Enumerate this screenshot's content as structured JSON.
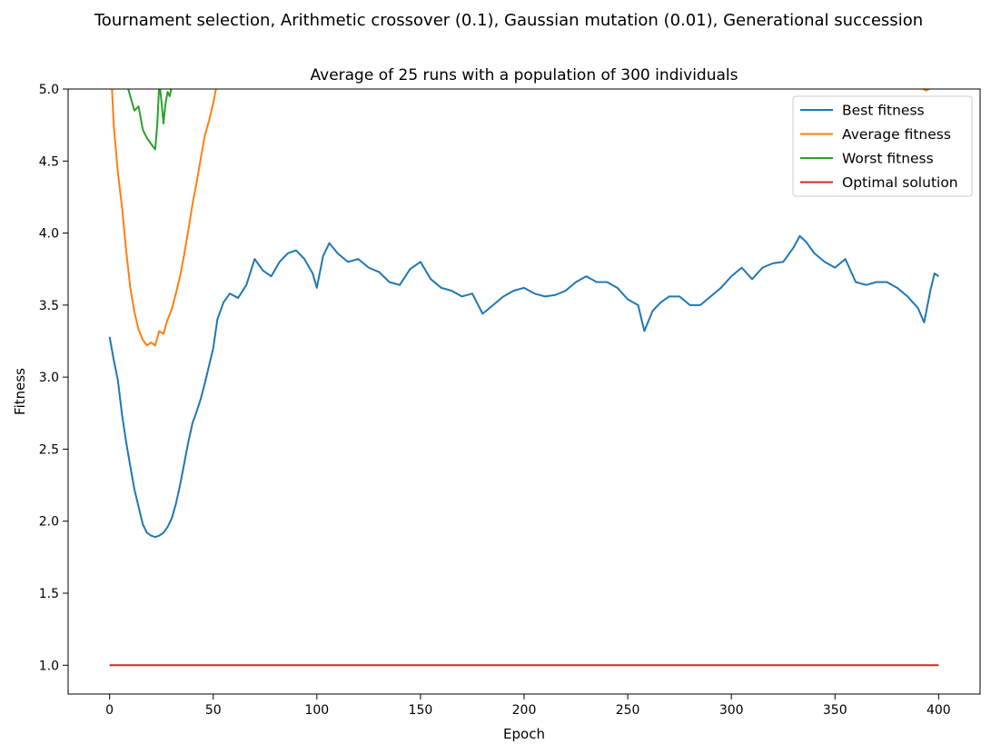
{
  "suptitle": "Tournament selection, Arithmetic crossover (0.1), Gaussian mutation (0.01), Generational succession",
  "chart_data": {
    "type": "line",
    "title": "Average of 25 runs with a population of 300 individuals",
    "xlabel": "Epoch",
    "ylabel": "Fitness",
    "xlim": [
      -20,
      420
    ],
    "ylim": [
      0.8,
      5.0
    ],
    "xticks": [
      0,
      50,
      100,
      150,
      200,
      250,
      300,
      350,
      400
    ],
    "yticks": [
      1.0,
      1.5,
      2.0,
      2.5,
      3.0,
      3.5,
      4.0,
      4.5,
      5.0
    ],
    "grid": false,
    "legend_position": "top-right",
    "series": [
      {
        "name": "Best fitness",
        "color": "#1f77b4",
        "points": [
          [
            0,
            3.28
          ],
          [
            2,
            3.12
          ],
          [
            4,
            2.98
          ],
          [
            6,
            2.74
          ],
          [
            8,
            2.55
          ],
          [
            10,
            2.38
          ],
          [
            12,
            2.22
          ],
          [
            14,
            2.1
          ],
          [
            16,
            1.98
          ],
          [
            18,
            1.92
          ],
          [
            20,
            1.9
          ],
          [
            22,
            1.89
          ],
          [
            24,
            1.9
          ],
          [
            26,
            1.92
          ],
          [
            28,
            1.96
          ],
          [
            30,
            2.02
          ],
          [
            32,
            2.12
          ],
          [
            34,
            2.25
          ],
          [
            36,
            2.4
          ],
          [
            38,
            2.55
          ],
          [
            40,
            2.68
          ],
          [
            42,
            2.76
          ],
          [
            44,
            2.85
          ],
          [
            46,
            2.96
          ],
          [
            48,
            3.08
          ],
          [
            50,
            3.2
          ],
          [
            52,
            3.4
          ],
          [
            55,
            3.52
          ],
          [
            58,
            3.58
          ],
          [
            62,
            3.55
          ],
          [
            66,
            3.64
          ],
          [
            70,
            3.82
          ],
          [
            74,
            3.74
          ],
          [
            78,
            3.7
          ],
          [
            82,
            3.8
          ],
          [
            86,
            3.86
          ],
          [
            90,
            3.88
          ],
          [
            94,
            3.82
          ],
          [
            98,
            3.72
          ],
          [
            100,
            3.62
          ],
          [
            103,
            3.84
          ],
          [
            106,
            3.93
          ],
          [
            110,
            3.86
          ],
          [
            115,
            3.8
          ],
          [
            120,
            3.82
          ],
          [
            125,
            3.76
          ],
          [
            130,
            3.73
          ],
          [
            135,
            3.66
          ],
          [
            140,
            3.64
          ],
          [
            145,
            3.75
          ],
          [
            150,
            3.8
          ],
          [
            155,
            3.68
          ],
          [
            160,
            3.62
          ],
          [
            165,
            3.6
          ],
          [
            170,
            3.56
          ],
          [
            175,
            3.58
          ],
          [
            180,
            3.44
          ],
          [
            185,
            3.5
          ],
          [
            190,
            3.56
          ],
          [
            195,
            3.6
          ],
          [
            200,
            3.62
          ],
          [
            205,
            3.58
          ],
          [
            210,
            3.56
          ],
          [
            215,
            3.57
          ],
          [
            220,
            3.6
          ],
          [
            225,
            3.66
          ],
          [
            230,
            3.7
          ],
          [
            235,
            3.66
          ],
          [
            240,
            3.66
          ],
          [
            245,
            3.62
          ],
          [
            250,
            3.54
          ],
          [
            255,
            3.5
          ],
          [
            258,
            3.32
          ],
          [
            262,
            3.46
          ],
          [
            266,
            3.52
          ],
          [
            270,
            3.56
          ],
          [
            275,
            3.56
          ],
          [
            280,
            3.5
          ],
          [
            285,
            3.5
          ],
          [
            290,
            3.56
          ],
          [
            295,
            3.62
          ],
          [
            300,
            3.7
          ],
          [
            305,
            3.76
          ],
          [
            310,
            3.68
          ],
          [
            315,
            3.76
          ],
          [
            320,
            3.79
          ],
          [
            325,
            3.8
          ],
          [
            330,
            3.9
          ],
          [
            333,
            3.98
          ],
          [
            336,
            3.94
          ],
          [
            340,
            3.86
          ],
          [
            345,
            3.8
          ],
          [
            350,
            3.76
          ],
          [
            355,
            3.82
          ],
          [
            360,
            3.66
          ],
          [
            365,
            3.64
          ],
          [
            370,
            3.66
          ],
          [
            375,
            3.66
          ],
          [
            380,
            3.62
          ],
          [
            385,
            3.56
          ],
          [
            390,
            3.48
          ],
          [
            393,
            3.38
          ],
          [
            396,
            3.6
          ],
          [
            398,
            3.72
          ],
          [
            400,
            3.7
          ]
        ]
      },
      {
        "name": "Average fitness",
        "color": "#ff7f0e",
        "points": [
          [
            1,
            5.05
          ],
          [
            2,
            4.75
          ],
          [
            4,
            4.42
          ],
          [
            6,
            4.18
          ],
          [
            8,
            3.88
          ],
          [
            10,
            3.62
          ],
          [
            12,
            3.45
          ],
          [
            14,
            3.33
          ],
          [
            16,
            3.26
          ],
          [
            18,
            3.22
          ],
          [
            20,
            3.24
          ],
          [
            22,
            3.22
          ],
          [
            24,
            3.32
          ],
          [
            26,
            3.3
          ],
          [
            28,
            3.4
          ],
          [
            30,
            3.47
          ],
          [
            32,
            3.58
          ],
          [
            34,
            3.7
          ],
          [
            36,
            3.85
          ],
          [
            38,
            4.02
          ],
          [
            40,
            4.2
          ],
          [
            42,
            4.35
          ],
          [
            44,
            4.52
          ],
          [
            46,
            4.68
          ],
          [
            48,
            4.78
          ],
          [
            50,
            4.9
          ],
          [
            52,
            5.05
          ]
        ],
        "extra_segments": [
          [
            [
              390,
              5.02
            ],
            [
              394,
              4.99
            ],
            [
              398,
              5.02
            ]
          ]
        ]
      },
      {
        "name": "Worst fitness",
        "color": "#2ca02c",
        "points": [
          [
            8,
            5.05
          ],
          [
            10,
            4.95
          ],
          [
            12,
            4.85
          ],
          [
            14,
            4.88
          ],
          [
            16,
            4.72
          ],
          [
            18,
            4.66
          ],
          [
            20,
            4.62
          ],
          [
            22,
            4.58
          ],
          [
            23,
            4.75
          ],
          [
            24,
            5.05
          ],
          [
            25,
            4.92
          ],
          [
            26,
            4.76
          ],
          [
            27,
            4.9
          ],
          [
            28,
            4.98
          ],
          [
            29,
            4.95
          ],
          [
            30,
            5.02
          ]
        ]
      },
      {
        "name": "Optimal solution",
        "color": "#d62728",
        "points": [
          [
            0,
            1.0
          ],
          [
            400,
            1.0
          ]
        ]
      }
    ]
  }
}
